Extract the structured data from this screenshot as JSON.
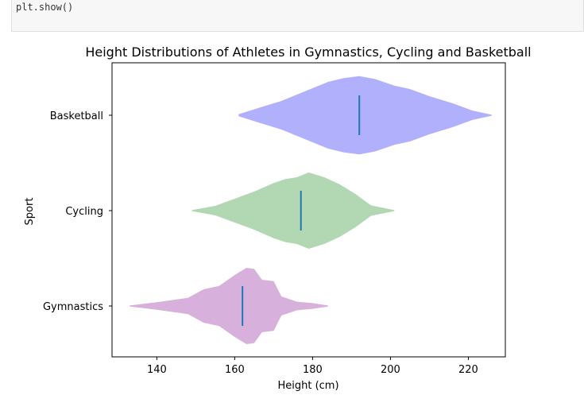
{
  "notebook": {
    "code_line": "plt.show()"
  },
  "chart_data": {
    "type": "violin",
    "title": "Height Distributions of Athletes in Gymnastics, Cycling and Basketball",
    "xlabel": "Height (cm)",
    "ylabel": "Sport",
    "xlim": [
      128.5,
      229.5
    ],
    "xticks": [
      140,
      160,
      180,
      200,
      220
    ],
    "orientation": "horizontal",
    "categories": [
      "Gymnastics",
      "Cycling",
      "Basketball"
    ],
    "series": [
      {
        "name": "Gymnastics",
        "color": "#d8b0dc",
        "median": 162,
        "profile": [
          [
            133,
            0.01
          ],
          [
            140,
            0.08
          ],
          [
            148,
            0.17
          ],
          [
            152,
            0.35
          ],
          [
            156,
            0.42
          ],
          [
            160,
            0.65
          ],
          [
            163,
            0.8
          ],
          [
            165,
            0.78
          ],
          [
            167,
            0.55
          ],
          [
            170,
            0.52
          ],
          [
            172,
            0.2
          ],
          [
            176,
            0.09
          ],
          [
            180,
            0.06
          ],
          [
            184,
            0.01
          ]
        ]
      },
      {
        "name": "Cycling",
        "color": "#b1d8b2",
        "median": 177,
        "profile": [
          [
            149,
            0.01
          ],
          [
            155,
            0.1
          ],
          [
            160,
            0.25
          ],
          [
            165,
            0.4
          ],
          [
            170,
            0.58
          ],
          [
            173,
            0.66
          ],
          [
            176,
            0.7
          ],
          [
            179,
            0.8
          ],
          [
            183,
            0.7
          ],
          [
            187,
            0.55
          ],
          [
            191,
            0.35
          ],
          [
            195,
            0.11
          ],
          [
            201,
            0.01
          ]
        ]
      },
      {
        "name": "Basketball",
        "color": "#b1b0fd",
        "median": 192,
        "profile": [
          [
            161,
            0.02
          ],
          [
            166,
            0.15
          ],
          [
            172,
            0.3
          ],
          [
            178,
            0.5
          ],
          [
            184,
            0.7
          ],
          [
            188,
            0.78
          ],
          [
            192,
            0.82
          ],
          [
            196,
            0.76
          ],
          [
            201,
            0.62
          ],
          [
            205,
            0.55
          ],
          [
            210,
            0.4
          ],
          [
            216,
            0.25
          ],
          [
            221,
            0.1
          ],
          [
            226,
            0.01
          ]
        ]
      }
    ],
    "median_line_color": "#1f77b4"
  }
}
